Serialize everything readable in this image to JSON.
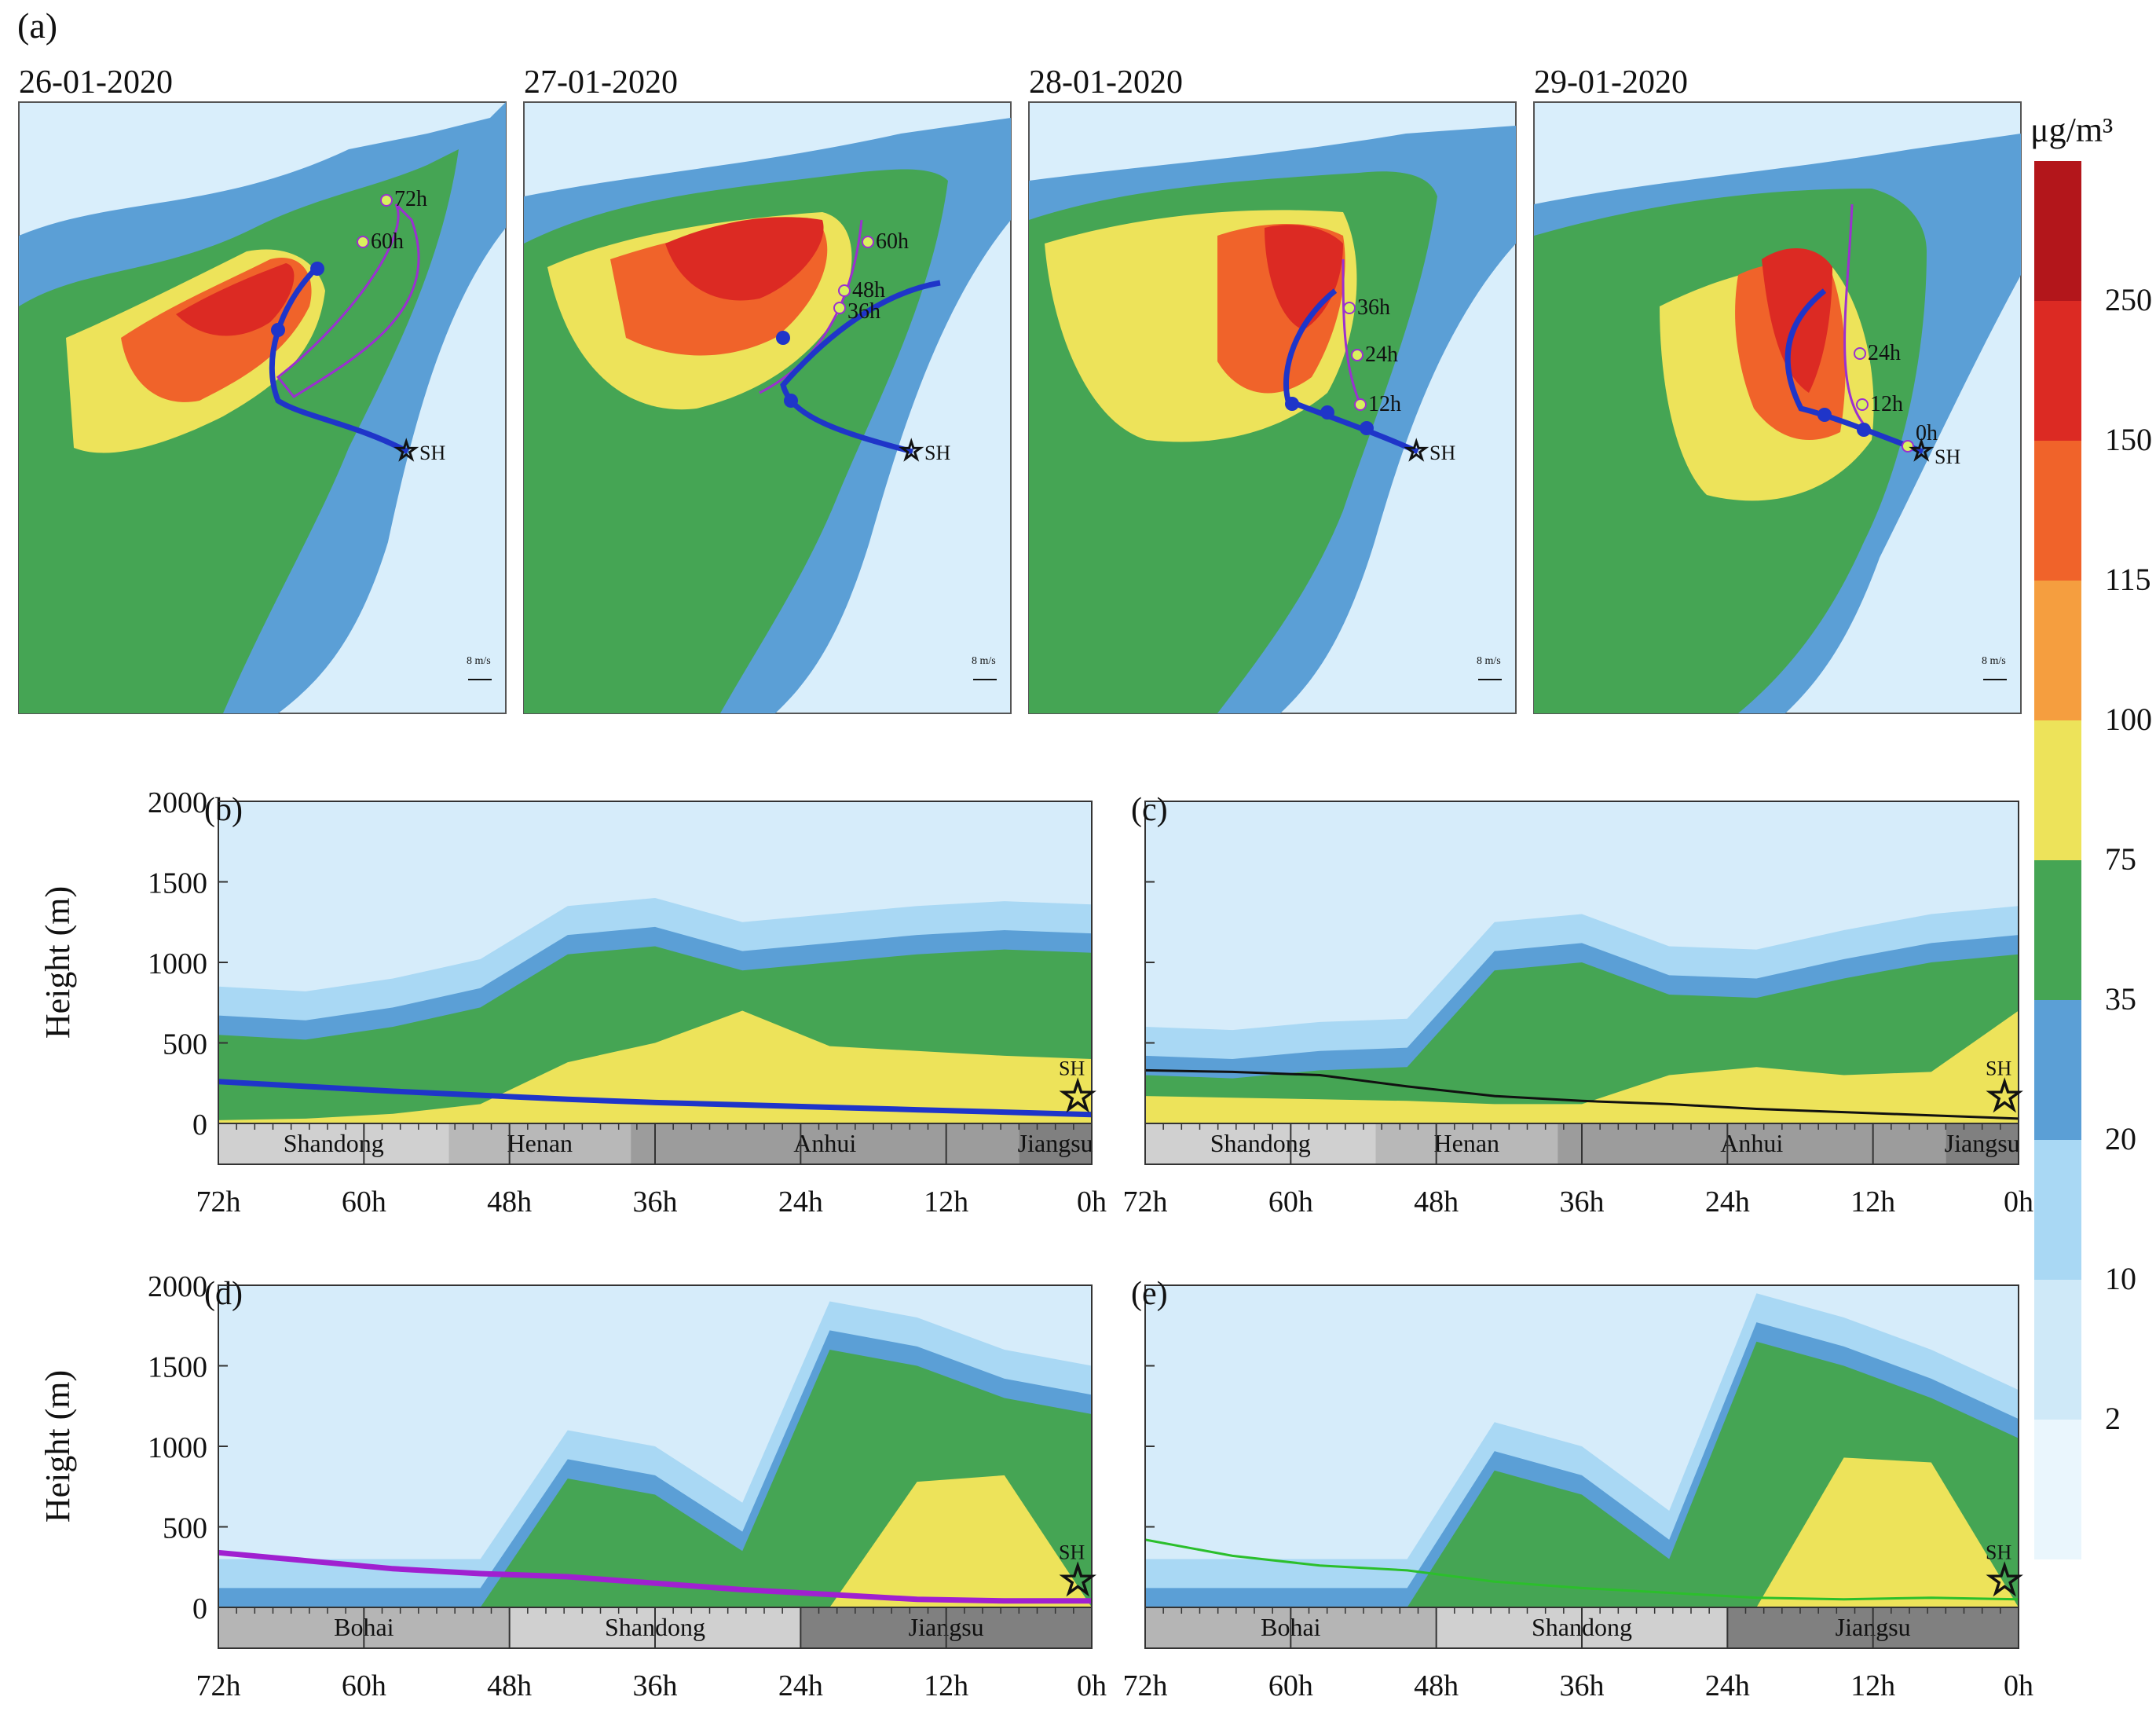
{
  "figure": {
    "panel_a_label": "(a)",
    "colorbar": {
      "unit": "μg/m³",
      "tick_labels": [
        "250",
        "150",
        "115",
        "100",
        "75",
        "35",
        "20",
        "10",
        "2"
      ],
      "colors": [
        "#b3161b",
        "#dc2a23",
        "#f0632a",
        "#f59e3f",
        "#ede35a",
        "#45a554",
        "#5b9fd6",
        "#a9d8f4",
        "#cfe9f8",
        "#eaf6fd"
      ]
    },
    "maps": [
      {
        "date": "26-01-2020",
        "hour_labels": [
          "72h",
          "60h"
        ],
        "site_label": "SH",
        "scale_label": "8 m/s"
      },
      {
        "date": "27-01-2020",
        "hour_labels": [
          "60h",
          "48h",
          "36h"
        ],
        "site_label": "SH",
        "scale_label": "8 m/s"
      },
      {
        "date": "28-01-2020",
        "hour_labels": [
          "36h",
          "24h",
          "12h"
        ],
        "site_label": "SH",
        "scale_label": "8 m/s"
      },
      {
        "date": "29-01-2020",
        "hour_labels": [
          "24h",
          "12h",
          "0h"
        ],
        "site_label": "SH",
        "scale_label": "8 m/s"
      }
    ],
    "sections": [
      {
        "label": "(b)",
        "regions": [
          "Shandong",
          "Henan",
          "Anhui",
          "Jiangsu"
        ],
        "site_label": "SH",
        "line_color": "#1f35c9"
      },
      {
        "label": "(c)",
        "regions": [
          "Shandong",
          "Henan",
          "Anhui",
          "Jiangsu"
        ],
        "site_label": "SH",
        "line_color": "#111111"
      },
      {
        "label": "(d)",
        "regions": [
          "Bohai",
          "Shandong",
          "Jiangsu"
        ],
        "site_label": "SH",
        "line_color": "#a020d0"
      },
      {
        "label": "(e)",
        "regions": [
          "Bohai",
          "Shandong",
          "Jiangsu"
        ],
        "site_label": "SH",
        "line_color": "#2bbf2b"
      }
    ],
    "ylabel": "Height (m)"
  },
  "chart_data": [
    {
      "type": "area",
      "panel": "(b)",
      "ylabel": "Height (m)",
      "ylim": [
        0,
        2000
      ],
      "yticks": [
        0,
        500,
        1000,
        1500,
        2000
      ],
      "x_tick_labels": [
        "72h",
        "60h",
        "48h",
        "36h",
        "24h",
        "12h",
        "0h"
      ],
      "x_hours": [
        72,
        60,
        48,
        36,
        24,
        12,
        0
      ],
      "regions": [
        {
          "name": "Shandong",
          "from": 72,
          "to": 53
        },
        {
          "name": "Henan",
          "from": 53,
          "to": 38
        },
        {
          "name": "Anhui",
          "from": 38,
          "to": 6
        },
        {
          "name": "Jiangsu",
          "from": 6,
          "to": 0
        }
      ],
      "trajectory_height": [
        260,
        230,
        200,
        175,
        150,
        130,
        115,
        100,
        85,
        70,
        55
      ],
      "pm25_top_heights": {
        "35": [
          550,
          520,
          600,
          720,
          1050,
          1100,
          950,
          1000,
          1050,
          1080,
          1060
        ],
        "75": [
          20,
          30,
          60,
          120,
          380,
          500,
          700,
          480,
          450,
          420,
          400
        ]
      }
    },
    {
      "type": "area",
      "panel": "(c)",
      "ylim": [
        0,
        2000
      ],
      "x_tick_labels": [
        "72h",
        "60h",
        "48h",
        "36h",
        "24h",
        "12h",
        "0h"
      ],
      "regions": [
        {
          "name": "Shandong",
          "from": 72,
          "to": 53
        },
        {
          "name": "Henan",
          "from": 53,
          "to": 38
        },
        {
          "name": "Anhui",
          "from": 38,
          "to": 6
        },
        {
          "name": "Jiangsu",
          "from": 6,
          "to": 0
        }
      ],
      "trajectory_height": [
        330,
        320,
        300,
        230,
        170,
        140,
        120,
        90,
        70,
        50,
        30
      ],
      "pm25_top_heights": {
        "35": [
          300,
          280,
          330,
          350,
          950,
          1000,
          800,
          780,
          900,
          1000,
          1050
        ],
        "75": [
          170,
          160,
          150,
          140,
          120,
          120,
          300,
          350,
          300,
          320,
          700
        ]
      }
    },
    {
      "type": "area",
      "panel": "(d)",
      "ylabel": "Height (m)",
      "ylim": [
        0,
        2000
      ],
      "x_tick_labels": [
        "72h",
        "60h",
        "48h",
        "36h",
        "24h",
        "12h",
        "0h"
      ],
      "regions": [
        {
          "name": "Bohai",
          "from": 72,
          "to": 48
        },
        {
          "name": "Shandong",
          "from": 48,
          "to": 24
        },
        {
          "name": "Jiangsu",
          "from": 24,
          "to": 0
        }
      ],
      "trajectory_height": [
        340,
        290,
        240,
        210,
        190,
        150,
        110,
        80,
        50,
        40,
        40
      ],
      "pm25_top_heights": {
        "35": [
          0,
          0,
          0,
          0,
          800,
          700,
          350,
          1600,
          1500,
          1300,
          1200
        ],
        "75": [
          0,
          0,
          0,
          0,
          0,
          0,
          0,
          0,
          780,
          820,
          0
        ]
      }
    },
    {
      "type": "area",
      "panel": "(e)",
      "ylim": [
        0,
        2000
      ],
      "x_tick_labels": [
        "72h",
        "60h",
        "48h",
        "36h",
        "24h",
        "12h",
        "0h"
      ],
      "regions": [
        {
          "name": "Bohai",
          "from": 72,
          "to": 48
        },
        {
          "name": "Shandong",
          "from": 48,
          "to": 24
        },
        {
          "name": "Jiangsu",
          "from": 24,
          "to": 0
        }
      ],
      "trajectory_height": [
        420,
        320,
        260,
        230,
        160,
        120,
        90,
        60,
        50,
        60,
        50
      ],
      "pm25_top_heights": {
        "35": [
          0,
          0,
          0,
          0,
          850,
          700,
          300,
          1650,
          1500,
          1300,
          1050
        ],
        "75": [
          0,
          0,
          0,
          0,
          0,
          0,
          0,
          0,
          930,
          900,
          0
        ]
      }
    }
  ]
}
